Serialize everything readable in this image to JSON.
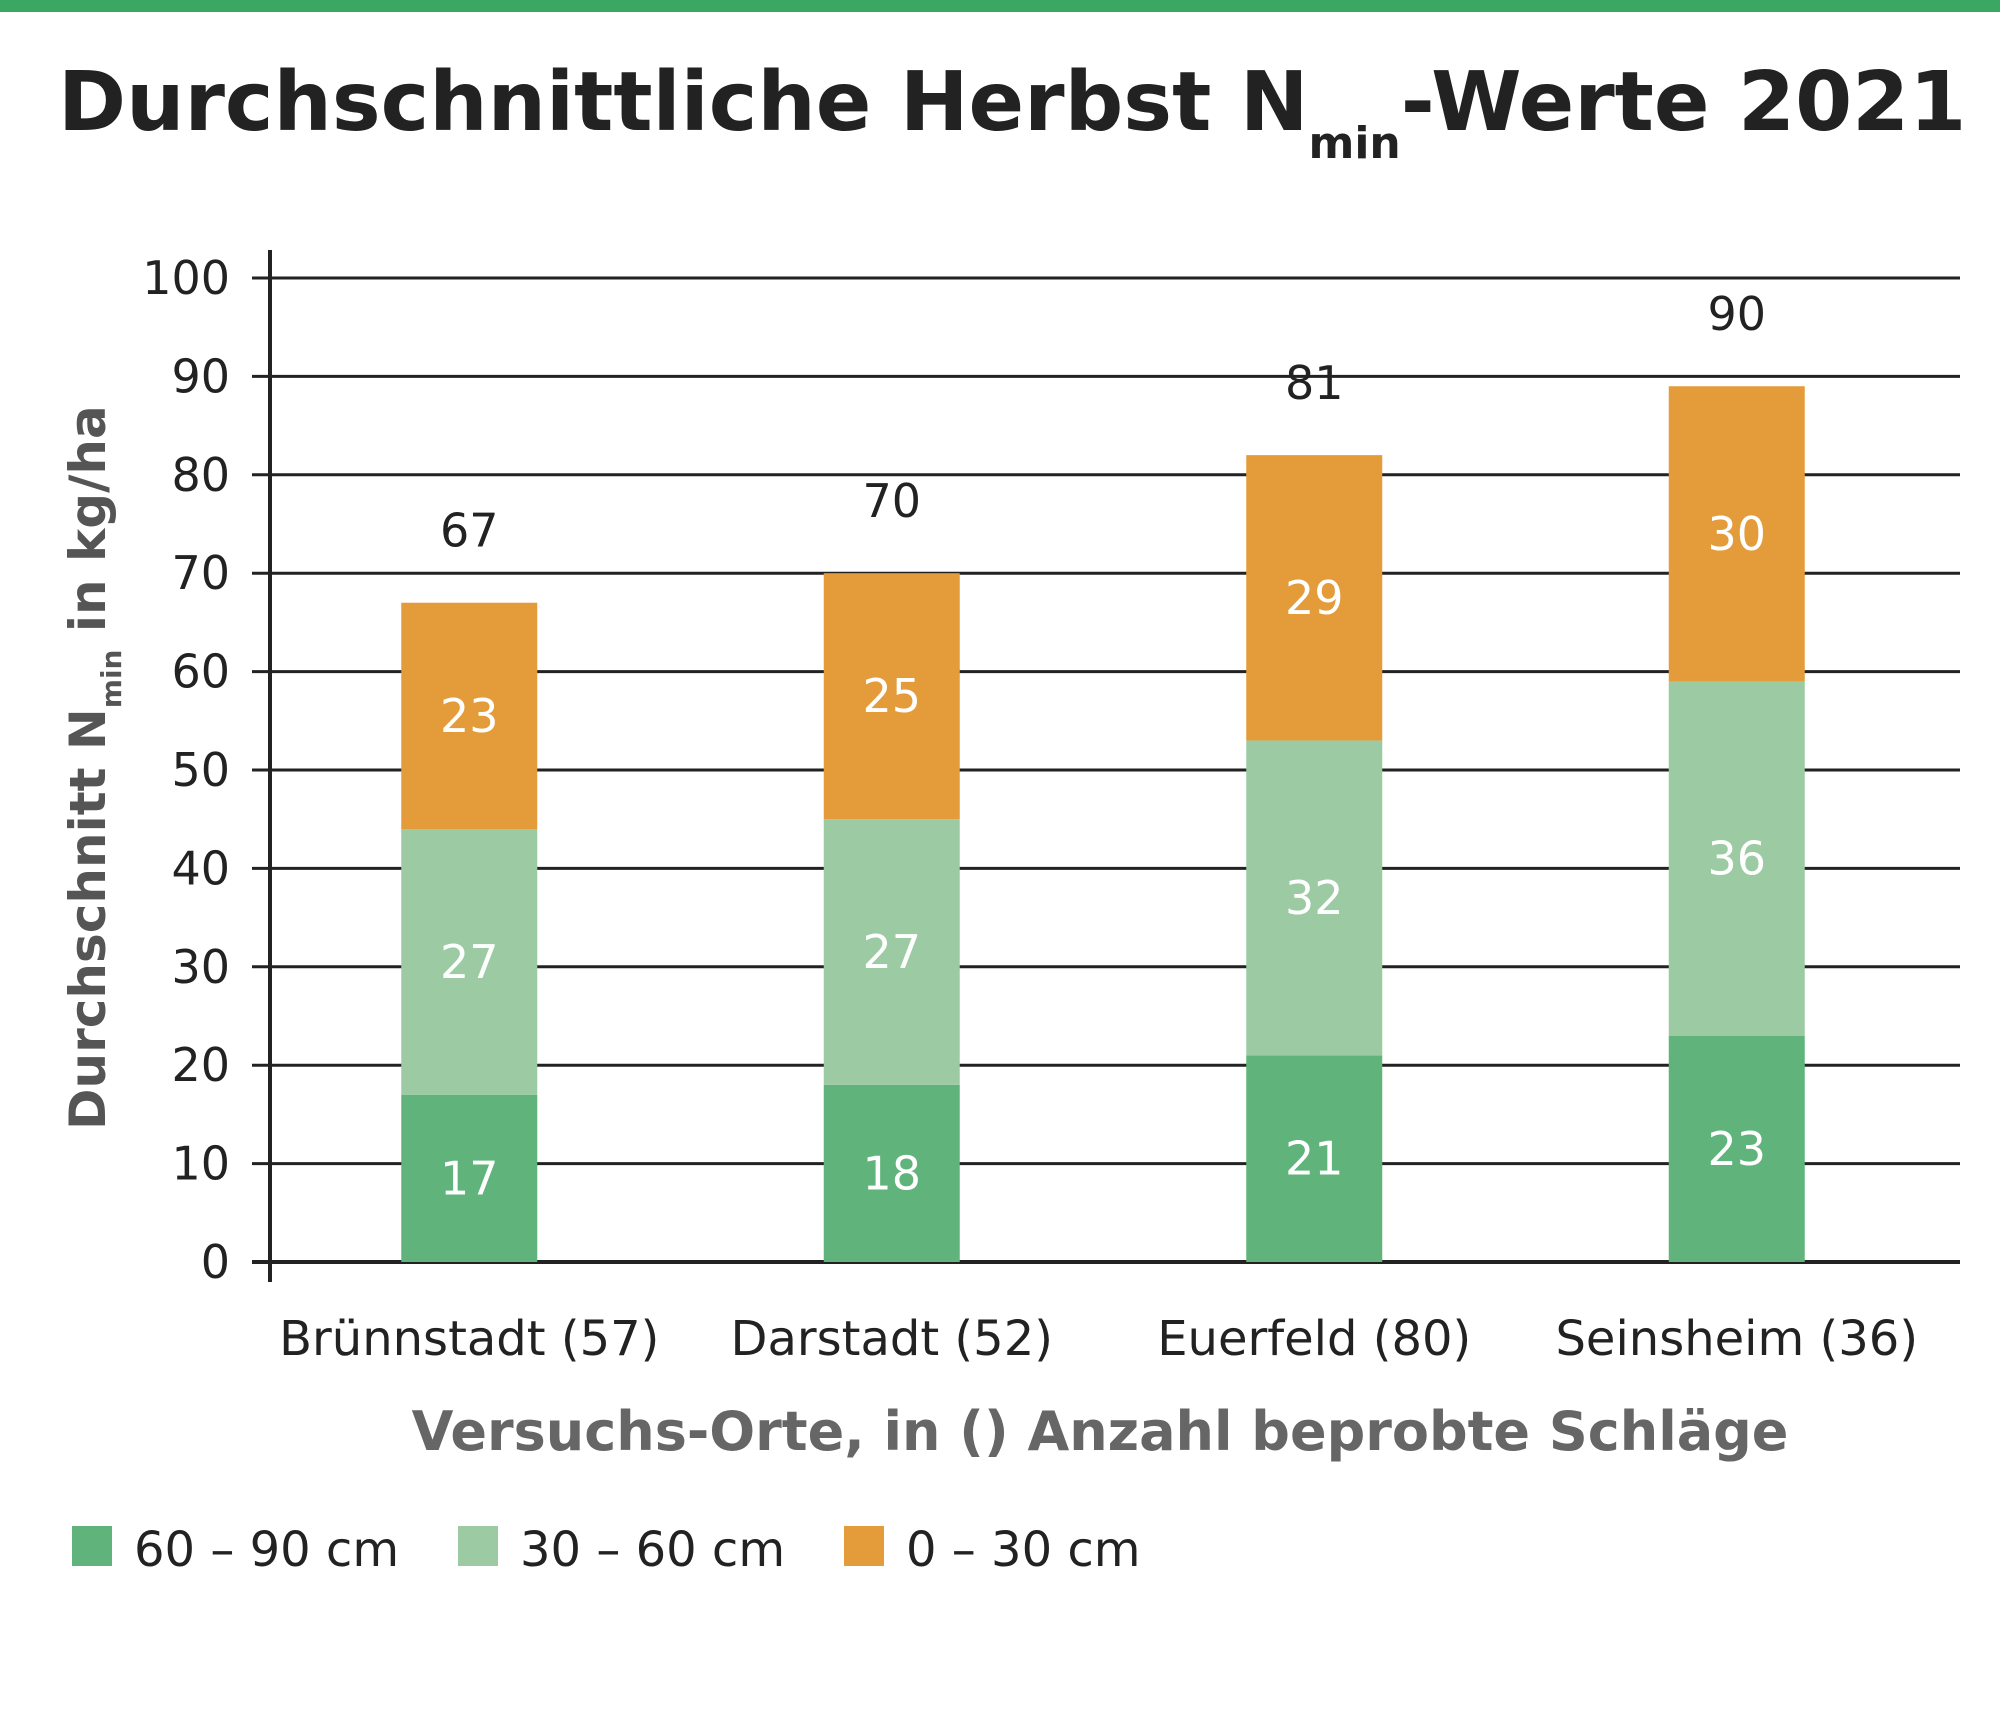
{
  "title": {
    "main": "Durchschnittliche Herbst N",
    "sub": "min",
    "suffix": "-Werte 2021"
  },
  "colors": {
    "accent_bar": "#3aa863",
    "deep": "#60b37a",
    "mid": "#9ccba3",
    "top": "#e49c3a"
  },
  "chart_data": {
    "type": "bar",
    "stacked": true,
    "categories": [
      "Brünnstadt (57)",
      "Darstadt (52)",
      "Euerfeld (80)",
      "Seinsheim (36)"
    ],
    "series": [
      {
        "name": "60 – 90 cm",
        "values": [
          17,
          18,
          21,
          23
        ]
      },
      {
        "name": "30 – 60 cm",
        "values": [
          27,
          27,
          32,
          36
        ]
      },
      {
        "name": "0 – 30 cm",
        "values": [
          23,
          25,
          29,
          30
        ]
      }
    ],
    "totals": [
      "67",
      "70",
      "81",
      "90"
    ],
    "ylim": [
      0,
      100
    ],
    "yticks": [
      "0",
      "10",
      "20",
      "30",
      "40",
      "50",
      "60",
      "70",
      "80",
      "90",
      "100"
    ],
    "ylabel": {
      "main": "Durchschnitt N",
      "sub": "min",
      "suffix": " in kg/ha"
    },
    "xlabel": "Versuchs-Orte, in () Anzahl beprobte Schläge",
    "grid": true,
    "legend_position": "bottom-left"
  }
}
